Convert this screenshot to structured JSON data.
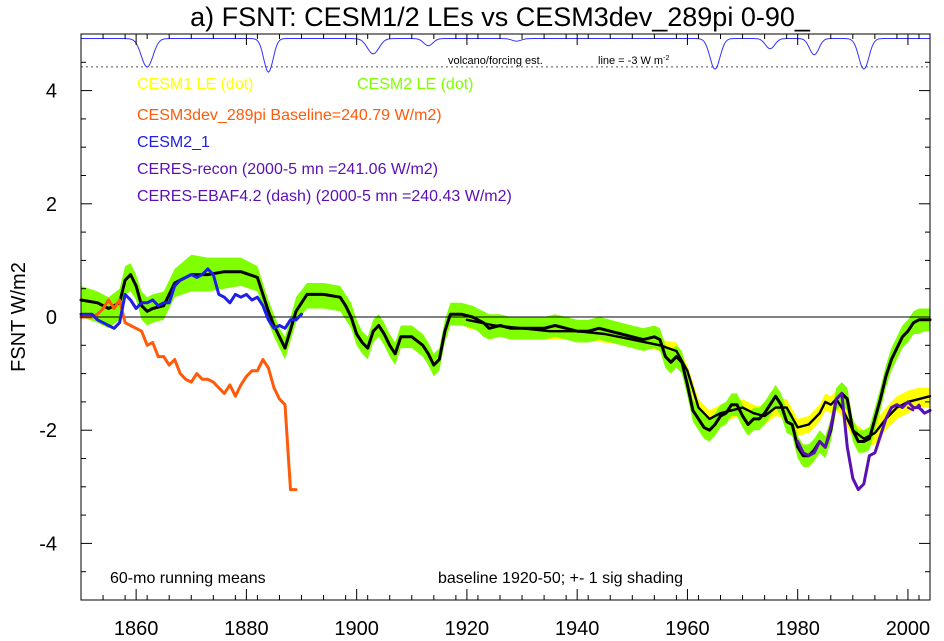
{
  "chart_data": {
    "type": "line",
    "title": "a) FSNT: CESM1/2 LEs vs CESM3dev_289pi 0-90_",
    "xlabel": "",
    "ylabel": "FSNT W/m2",
    "xlim": [
      1850,
      2004
    ],
    "ylim": [
      -5,
      5
    ],
    "x_ticks": [
      1860,
      1880,
      1900,
      1920,
      1940,
      1960,
      1980,
      2000
    ],
    "y_ticks": [
      -4,
      -2,
      0,
      2,
      4
    ],
    "zero_line": 0,
    "legend_position": "top-left",
    "legend": [
      {
        "label": "CESM1 LE (dot)",
        "color": "#ffff00"
      },
      {
        "label": "CESM2 LE (dot)",
        "color": "#7fff00"
      },
      {
        "label": "CESM3dev_289pi Baseline=240.79 W/m2)",
        "color": "#ff5a0a"
      },
      {
        "label": "CESM2_1",
        "color": "#1e1ee6"
      },
      {
        "label": "CERES-recon (2000-5 mn =241.06 W/m2)",
        "color": "#5a10b4"
      },
      {
        "label": "CERES-EBAF4.2 (dash) (2000-5 mn =240.43 W/m2)",
        "color": "#5a10b4"
      }
    ],
    "annotations": {
      "volcano_label": "volcano/forcing est.",
      "line_label": "line = -3 W m",
      "line_label_sup": "-2",
      "bottom_left": "60-mo running means",
      "bottom_right": "baseline 1920-50; +- 1 sig shading"
    },
    "volcano_reference_line": 4.42,
    "volcano_series": {
      "baseline": 4.92,
      "scale": 0.18,
      "events": [
        {
          "year": 1862,
          "depth": 2.8,
          "width": 1.5
        },
        {
          "year": 1884,
          "depth": 3.3,
          "width": 1.2
        },
        {
          "year": 1903,
          "depth": 1.5,
          "width": 1.5
        },
        {
          "year": 1913,
          "depth": 0.7,
          "width": 1.2
        },
        {
          "year": 1929,
          "depth": 0.25,
          "width": 1.2
        },
        {
          "year": 1965,
          "depth": 3.0,
          "width": 1.3
        },
        {
          "year": 1975,
          "depth": 1.0,
          "width": 1.2
        },
        {
          "year": 1983,
          "depth": 1.6,
          "width": 1.2
        },
        {
          "year": 1992,
          "depth": 3.0,
          "width": 1.3
        }
      ]
    },
    "series": [
      {
        "name": "CESM1 LE shading",
        "kind": "band",
        "color": "#ffff00",
        "x": [
          1920,
          1925,
          1930,
          1935,
          1940,
          1945,
          1950,
          1955,
          1958,
          1960,
          1962,
          1964,
          1966,
          1968,
          1970,
          1972,
          1974,
          1976,
          1978,
          1980,
          1982,
          1984,
          1985,
          1986,
          1987,
          1988,
          1990,
          1992,
          1994,
          1996,
          1998,
          2000,
          2002,
          2004
        ],
        "lower": [
          -0.2,
          -0.3,
          -0.35,
          -0.4,
          -0.4,
          -0.45,
          -0.5,
          -0.6,
          -0.75,
          -1.1,
          -1.75,
          -2.0,
          -1.85,
          -1.8,
          -1.75,
          -1.85,
          -1.9,
          -1.75,
          -1.8,
          -2.1,
          -2.05,
          -1.85,
          -1.65,
          -1.7,
          -1.65,
          -1.75,
          -2.15,
          -2.3,
          -2.25,
          -2.0,
          -1.8,
          -1.7,
          -1.6,
          -1.6
        ],
        "upper": [
          0.05,
          -0.05,
          -0.1,
          -0.15,
          -0.15,
          -0.2,
          -0.3,
          -0.4,
          -0.45,
          -0.85,
          -1.45,
          -1.65,
          -1.55,
          -1.5,
          -1.45,
          -1.55,
          -1.6,
          -1.45,
          -1.45,
          -1.8,
          -1.75,
          -1.55,
          -1.35,
          -1.4,
          -1.3,
          -1.45,
          -1.85,
          -2.0,
          -1.85,
          -1.6,
          -1.4,
          -1.3,
          -1.25,
          -1.25
        ]
      },
      {
        "name": "CESM2 LE shading",
        "kind": "band",
        "color": "#7fff00",
        "x": [
          1850,
          1853,
          1855,
          1857,
          1858,
          1859,
          1860,
          1861,
          1862,
          1863,
          1865,
          1867,
          1870,
          1873,
          1876,
          1879,
          1882,
          1883,
          1884,
          1885,
          1886,
          1887,
          1889,
          1891,
          1894,
          1897,
          1898,
          1899,
          1900,
          1901,
          1902,
          1903,
          1904,
          1905,
          1906,
          1907,
          1908,
          1910,
          1912,
          1913,
          1914,
          1915,
          1916,
          1917,
          1919,
          1921,
          1922,
          1923,
          1924,
          1926,
          1928,
          1930,
          1932,
          1934,
          1936,
          1938,
          1940,
          1942,
          1944,
          1946,
          1948,
          1950,
          1952,
          1954,
          1955,
          1956,
          1957,
          1958,
          1959,
          1960,
          1961,
          1962,
          1963,
          1964,
          1965,
          1966,
          1967,
          1968,
          1969,
          1970,
          1971,
          1972,
          1973,
          1974,
          1975,
          1976,
          1977,
          1978,
          1979,
          1980,
          1981,
          1982,
          1983,
          1984,
          1985,
          1986,
          1987,
          1988,
          1989,
          1990,
          1991,
          1992,
          1993,
          1994,
          1995,
          1996,
          1997,
          1998,
          1999,
          2000,
          2001,
          2002,
          2003,
          2004
        ],
        "lower": [
          0.0,
          -0.1,
          -0.2,
          -0.05,
          0.4,
          0.45,
          0.3,
          -0.05,
          -0.15,
          -0.1,
          -0.05,
          0.35,
          0.45,
          0.45,
          0.5,
          0.55,
          0.45,
          0.2,
          -0.1,
          -0.35,
          -0.55,
          -0.75,
          -0.1,
          0.15,
          0.15,
          0.1,
          -0.05,
          -0.2,
          -0.5,
          -0.65,
          -0.75,
          -0.45,
          -0.35,
          -0.5,
          -0.7,
          -0.85,
          -0.55,
          -0.55,
          -0.7,
          -0.85,
          -1.05,
          -0.95,
          -0.45,
          -0.15,
          -0.15,
          -0.2,
          -0.25,
          -0.35,
          -0.4,
          -0.35,
          -0.4,
          -0.4,
          -0.4,
          -0.4,
          -0.35,
          -0.4,
          -0.45,
          -0.45,
          -0.4,
          -0.45,
          -0.5,
          -0.55,
          -0.6,
          -0.55,
          -0.6,
          -0.9,
          -1.0,
          -0.9,
          -1.0,
          -1.4,
          -1.85,
          -2.0,
          -2.15,
          -2.2,
          -2.1,
          -1.95,
          -1.9,
          -1.75,
          -1.75,
          -1.95,
          -2.1,
          -2.0,
          -2.0,
          -1.9,
          -1.75,
          -1.6,
          -1.75,
          -2.05,
          -2.1,
          -2.5,
          -2.65,
          -2.65,
          -2.55,
          -2.4,
          -2.5,
          -2.2,
          -1.65,
          -1.55,
          -1.65,
          -2.2,
          -2.4,
          -2.4,
          -2.35,
          -2.0,
          -1.65,
          -1.25,
          -0.95,
          -0.75,
          -0.55,
          -0.45,
          -0.3,
          -0.3,
          -0.25,
          -0.25
        ],
        "upper": [
          0.55,
          0.45,
          0.35,
          0.5,
          0.9,
          0.95,
          0.75,
          0.45,
          0.35,
          0.4,
          0.45,
          0.85,
          1.1,
          1.05,
          1.05,
          1.05,
          0.9,
          0.6,
          0.3,
          0.05,
          -0.2,
          -0.35,
          0.35,
          0.6,
          0.6,
          0.55,
          0.4,
          0.25,
          -0.05,
          -0.25,
          -0.35,
          -0.05,
          0.05,
          -0.1,
          -0.3,
          -0.45,
          -0.15,
          -0.15,
          -0.3,
          -0.45,
          -0.65,
          -0.55,
          -0.05,
          0.25,
          0.25,
          0.2,
          0.15,
          0.1,
          0.05,
          0.05,
          0.0,
          0.0,
          0.0,
          0.0,
          0.05,
          0.0,
          -0.05,
          -0.05,
          0.0,
          -0.05,
          -0.1,
          -0.15,
          -0.2,
          -0.15,
          -0.2,
          -0.5,
          -0.6,
          -0.5,
          -0.6,
          -1.0,
          -1.45,
          -1.6,
          -1.75,
          -1.8,
          -1.7,
          -1.55,
          -1.5,
          -1.35,
          -1.35,
          -1.55,
          -1.7,
          -1.6,
          -1.6,
          -1.5,
          -1.35,
          -1.2,
          -1.35,
          -1.65,
          -1.7,
          -2.1,
          -2.25,
          -2.25,
          -2.15,
          -2.0,
          -2.1,
          -1.8,
          -1.25,
          -1.15,
          -1.25,
          -1.8,
          -2.0,
          -2.0,
          -1.95,
          -1.6,
          -1.25,
          -0.85,
          -0.55,
          -0.35,
          -0.15,
          -0.05,
          0.1,
          0.15,
          0.15,
          0.15
        ]
      },
      {
        "name": "CESM1 LE mean",
        "kind": "line",
        "color": "#000000",
        "width": 2.4,
        "dash": "",
        "x": [
          1920,
          1925,
          1930,
          1935,
          1940,
          1945,
          1950,
          1955,
          1958,
          1960,
          1962,
          1964,
          1966,
          1968,
          1970,
          1972,
          1974,
          1976,
          1978,
          1980,
          1982,
          1984,
          1985,
          1986,
          1987,
          1988,
          1990,
          1992,
          1994,
          1996,
          1998,
          2000,
          2002,
          2004
        ],
        "y": [
          -0.05,
          -0.15,
          -0.2,
          -0.25,
          -0.25,
          -0.3,
          -0.4,
          -0.5,
          -0.6,
          -0.95,
          -1.6,
          -1.8,
          -1.7,
          -1.65,
          -1.6,
          -1.7,
          -1.75,
          -1.6,
          -1.6,
          -1.95,
          -1.9,
          -1.7,
          -1.5,
          -1.55,
          -1.45,
          -1.6,
          -2.0,
          -2.15,
          -2.05,
          -1.8,
          -1.6,
          -1.5,
          -1.45,
          -1.4
        ]
      },
      {
        "name": "CESM2 LE mean",
        "kind": "line",
        "color": "#000000",
        "width": 3.0,
        "dash": "",
        "x": [
          1850,
          1853,
          1855,
          1857,
          1858,
          1859,
          1860,
          1861,
          1862,
          1863,
          1865,
          1867,
          1870,
          1873,
          1876,
          1879,
          1882,
          1883,
          1884,
          1885,
          1886,
          1887,
          1889,
          1891,
          1894,
          1897,
          1898,
          1899,
          1900,
          1901,
          1902,
          1903,
          1904,
          1905,
          1906,
          1907,
          1908,
          1910,
          1912,
          1913,
          1914,
          1915,
          1916,
          1917,
          1919,
          1921,
          1922,
          1923,
          1924,
          1926,
          1928,
          1930,
          1932,
          1934,
          1936,
          1938,
          1940,
          1942,
          1944,
          1946,
          1948,
          1950,
          1952,
          1954,
          1955,
          1956,
          1957,
          1958,
          1959,
          1960,
          1961,
          1962,
          1963,
          1964,
          1965,
          1966,
          1967,
          1968,
          1969,
          1970,
          1971,
          1972,
          1973,
          1974,
          1975,
          1976,
          1977,
          1978,
          1979,
          1980,
          1981,
          1982,
          1983,
          1984,
          1985,
          1986,
          1987,
          1988,
          1989,
          1990,
          1991,
          1992,
          1993,
          1994,
          1995,
          1996,
          1997,
          1998,
          1999,
          2000,
          2001,
          2002,
          2003,
          2004
        ],
        "y": [
          0.3,
          0.25,
          0.15,
          0.25,
          0.65,
          0.75,
          0.55,
          0.2,
          0.1,
          0.15,
          0.2,
          0.6,
          0.75,
          0.75,
          0.8,
          0.8,
          0.7,
          0.4,
          0.1,
          -0.15,
          -0.35,
          -0.55,
          0.1,
          0.4,
          0.4,
          0.35,
          0.2,
          0.0,
          -0.3,
          -0.45,
          -0.55,
          -0.25,
          -0.15,
          -0.3,
          -0.5,
          -0.65,
          -0.35,
          -0.35,
          -0.5,
          -0.65,
          -0.85,
          -0.75,
          -0.25,
          0.05,
          0.05,
          0.0,
          -0.05,
          -0.1,
          -0.2,
          -0.15,
          -0.2,
          -0.2,
          -0.2,
          -0.2,
          -0.15,
          -0.2,
          -0.25,
          -0.25,
          -0.2,
          -0.25,
          -0.3,
          -0.35,
          -0.4,
          -0.35,
          -0.4,
          -0.7,
          -0.8,
          -0.7,
          -0.8,
          -1.2,
          -1.65,
          -1.8,
          -1.95,
          -2.0,
          -1.9,
          -1.75,
          -1.7,
          -1.55,
          -1.55,
          -1.75,
          -1.9,
          -1.8,
          -1.8,
          -1.7,
          -1.55,
          -1.4,
          -1.55,
          -1.85,
          -1.9,
          -2.3,
          -2.45,
          -2.45,
          -2.35,
          -2.2,
          -2.3,
          -2.0,
          -1.45,
          -1.35,
          -1.45,
          -2.0,
          -2.2,
          -2.2,
          -2.15,
          -1.8,
          -1.45,
          -1.05,
          -0.75,
          -0.55,
          -0.35,
          -0.25,
          -0.1,
          -0.05,
          -0.05,
          -0.05
        ]
      },
      {
        "name": "CESM3dev_289pi",
        "kind": "line",
        "color": "#ff5a0a",
        "width": 3.0,
        "dash": "",
        "x": [
          1850,
          1852,
          1853,
          1854,
          1855,
          1856,
          1857,
          1858,
          1859,
          1860,
          1861,
          1862,
          1863,
          1864,
          1865,
          1866,
          1867,
          1868,
          1869,
          1870,
          1871,
          1872,
          1873,
          1874,
          1875,
          1876,
          1877,
          1878,
          1879,
          1880,
          1881,
          1882,
          1883,
          1884,
          1885,
          1886,
          1887,
          1888,
          1889
        ],
        "y": [
          0.0,
          0.0,
          0.05,
          0.15,
          0.3,
          0.15,
          0.3,
          -0.1,
          -0.15,
          -0.2,
          -0.25,
          -0.5,
          -0.45,
          -0.7,
          -0.7,
          -0.85,
          -0.75,
          -1.0,
          -1.1,
          -1.15,
          -1.0,
          -1.1,
          -1.1,
          -1.15,
          -1.25,
          -1.35,
          -1.2,
          -1.4,
          -1.2,
          -1.05,
          -0.95,
          -0.95,
          -0.75,
          -0.9,
          -1.25,
          -1.45,
          -1.55,
          -3.05,
          -3.05
        ]
      },
      {
        "name": "CESM2_1",
        "kind": "line",
        "color": "#1e1ee6",
        "width": 3.0,
        "dash": "",
        "x": [
          1850,
          1852,
          1853,
          1854,
          1855,
          1856,
          1857,
          1858,
          1859,
          1860,
          1861,
          1862,
          1863,
          1864,
          1865,
          1866,
          1867,
          1868,
          1869,
          1870,
          1871,
          1872,
          1873,
          1874,
          1875,
          1876,
          1877,
          1878,
          1879,
          1880,
          1881,
          1882,
          1883,
          1884,
          1885,
          1886,
          1887,
          1888,
          1889,
          1890
        ],
        "y": [
          0.05,
          0.05,
          -0.05,
          -0.1,
          -0.15,
          -0.2,
          -0.1,
          0.4,
          0.3,
          0.15,
          0.25,
          0.25,
          0.3,
          0.2,
          0.25,
          0.25,
          0.55,
          0.65,
          0.7,
          0.75,
          0.7,
          0.75,
          0.85,
          0.75,
          0.4,
          0.35,
          0.25,
          0.4,
          0.35,
          0.4,
          0.3,
          0.35,
          0.2,
          -0.05,
          -0.2,
          -0.15,
          -0.2,
          -0.05,
          -0.05,
          0.05
        ]
      },
      {
        "name": "CERES-recon",
        "kind": "line",
        "color": "#5a10b4",
        "width": 3.0,
        "dash": "",
        "x": [
          1980,
          1981,
          1982,
          1983,
          1984,
          1985,
          1986,
          1987,
          1988,
          1989,
          1990,
          1991,
          1992,
          1993,
          1994,
          1995,
          1996,
          1997,
          1998,
          1999,
          2000,
          2001,
          2002,
          2003,
          2004
        ],
        "y": [
          -2.2,
          -2.4,
          -2.45,
          -2.4,
          -2.2,
          -2.3,
          -1.95,
          -1.45,
          -1.35,
          -2.3,
          -2.85,
          -3.05,
          -2.95,
          -2.45,
          -2.4,
          -2.1,
          -1.8,
          -1.6,
          -1.55,
          -1.6,
          -1.5,
          -1.6,
          -1.6,
          -1.7,
          -1.65
        ]
      },
      {
        "name": "CERES-EBAF4.2",
        "kind": "line",
        "color": "#5a10b4",
        "width": 2.2,
        "dash": "6,4",
        "x": [
          2000,
          2001,
          2002,
          2003,
          2004
        ],
        "y": [
          -1.6,
          -1.65,
          -1.55,
          -1.7,
          -1.65
        ]
      }
    ]
  }
}
